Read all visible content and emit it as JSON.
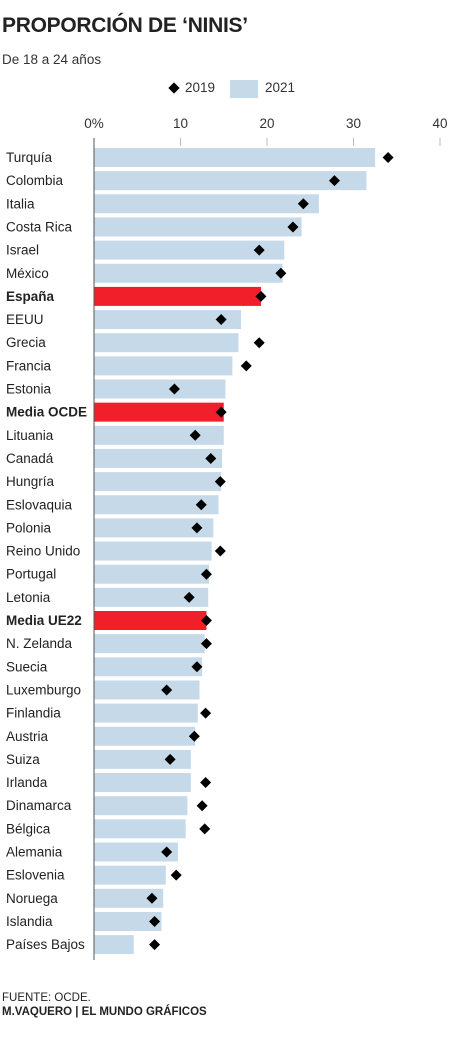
{
  "header": {
    "title": "PROPORCIÓN DE ‘NINIS’",
    "subtitle": "De 18 a 24 años"
  },
  "legend": {
    "series_2019": "2019",
    "series_2021": "2021"
  },
  "footer": {
    "source": "FUENTE: OCDE.",
    "credit": "M.VAQUERO | EL MUNDO GRÁFICOS"
  },
  "colors": {
    "bar": "#c6d9e8",
    "highlight": "#f01f2a",
    "marker": "#000000"
  },
  "chart_data": {
    "type": "bar",
    "orientation": "horizontal",
    "x_ticks": [
      "0%",
      "10",
      "20",
      "30",
      "40"
    ],
    "xlim": [
      0,
      40
    ],
    "grid": true,
    "legend_position": "top",
    "highlighted": [
      "España",
      "Media OCDE",
      "Media UE22"
    ],
    "categories": [
      "Turquía",
      "Colombia",
      "Italia",
      "Costa Rica",
      "Israel",
      "México",
      "España",
      "EEUU",
      "Grecia",
      "Francia",
      "Estonia",
      "Media OCDE",
      "Lituania",
      "Canadá",
      "Hungría",
      "Eslovaquia",
      "Polonia",
      "Reino Unido",
      "Portugal",
      "Letonia",
      "Media UE22",
      "N. Zelanda",
      "Suecia",
      "Luxemburgo",
      "Finlandia",
      "Austria",
      "Suiza",
      "Irlanda",
      "Dinamarca",
      "Bélgica",
      "Alemania",
      "Eslovenia",
      "Noruega",
      "Islandia",
      "Países Bajos"
    ],
    "series": [
      {
        "name": "2021",
        "mark": "bar",
        "values": [
          32.5,
          31.5,
          26.0,
          24.0,
          22.0,
          21.8,
          19.3,
          17.0,
          16.7,
          16.0,
          15.2,
          15.0,
          15.0,
          14.8,
          14.7,
          14.4,
          13.8,
          13.6,
          13.3,
          13.2,
          13.0,
          12.8,
          12.5,
          12.2,
          12.0,
          11.7,
          11.2,
          11.2,
          10.8,
          10.6,
          9.7,
          8.3,
          8.0,
          7.8,
          4.6
        ]
      },
      {
        "name": "2019",
        "mark": "diamond",
        "values": [
          34.0,
          27.8,
          24.2,
          23.0,
          19.1,
          21.6,
          19.3,
          14.7,
          19.1,
          17.6,
          9.3,
          14.7,
          11.7,
          13.5,
          14.6,
          12.4,
          11.9,
          14.6,
          13.0,
          11.0,
          13.0,
          13.0,
          11.9,
          8.4,
          12.9,
          11.6,
          8.8,
          12.9,
          12.5,
          12.8,
          8.4,
          9.5,
          6.7,
          7.0,
          7.0
        ]
      }
    ]
  }
}
